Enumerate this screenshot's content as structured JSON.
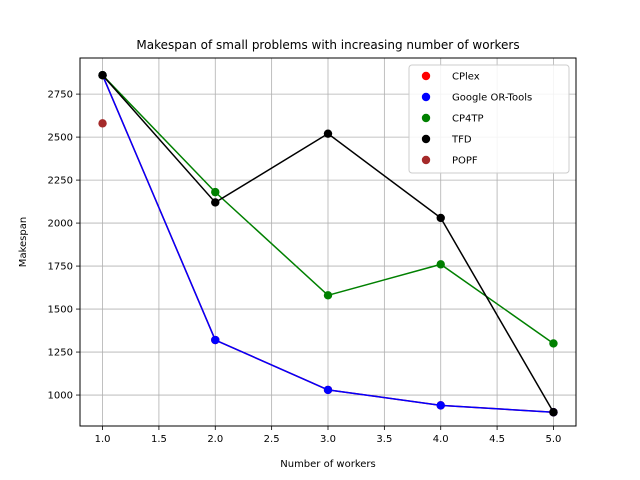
{
  "chart_data": {
    "type": "line",
    "title": "Makespan of small problems with increasing number of workers",
    "xlabel": "Number of workers",
    "ylabel": "Makespan",
    "xlim": [
      0.8,
      5.2
    ],
    "ylim": [
      820,
      2960
    ],
    "xticks": [
      1.0,
      1.5,
      2.0,
      2.5,
      3.0,
      3.5,
      4.0,
      4.5,
      5.0
    ],
    "xtick_labels": [
      "1.0",
      "1.5",
      "2.0",
      "2.5",
      "3.0",
      "3.5",
      "4.0",
      "4.5",
      "5.0"
    ],
    "yticks": [
      1000,
      1250,
      1500,
      1750,
      2000,
      2250,
      2500,
      2750
    ],
    "ytick_labels": [
      "1000",
      "1250",
      "1500",
      "1750",
      "2000",
      "2250",
      "2500",
      "2750"
    ],
    "grid": true,
    "legend_position": "top-right",
    "series": [
      {
        "name": "CPlex",
        "color": "#ff0000",
        "x": [
          1,
          2,
          3,
          4,
          5
        ],
        "y": [
          2860,
          1320,
          1030,
          940,
          900
        ]
      },
      {
        "name": "Google OR-Tools",
        "color": "#0000ff",
        "x": [
          1,
          2,
          3,
          4,
          5
        ],
        "y": [
          2860,
          1320,
          1030,
          940,
          900
        ]
      },
      {
        "name": "CP4TP",
        "color": "#008000",
        "x": [
          1,
          2,
          3,
          4,
          5
        ],
        "y": [
          2860,
          2180,
          1580,
          1760,
          1300
        ]
      },
      {
        "name": "TFD",
        "color": "#000000",
        "x": [
          1,
          2,
          3,
          4,
          5
        ],
        "y": [
          2860,
          2120,
          2520,
          2030,
          900
        ]
      },
      {
        "name": "POPF",
        "color": "#a52a2a",
        "x": [
          1
        ],
        "y": [
          2580
        ]
      }
    ]
  }
}
